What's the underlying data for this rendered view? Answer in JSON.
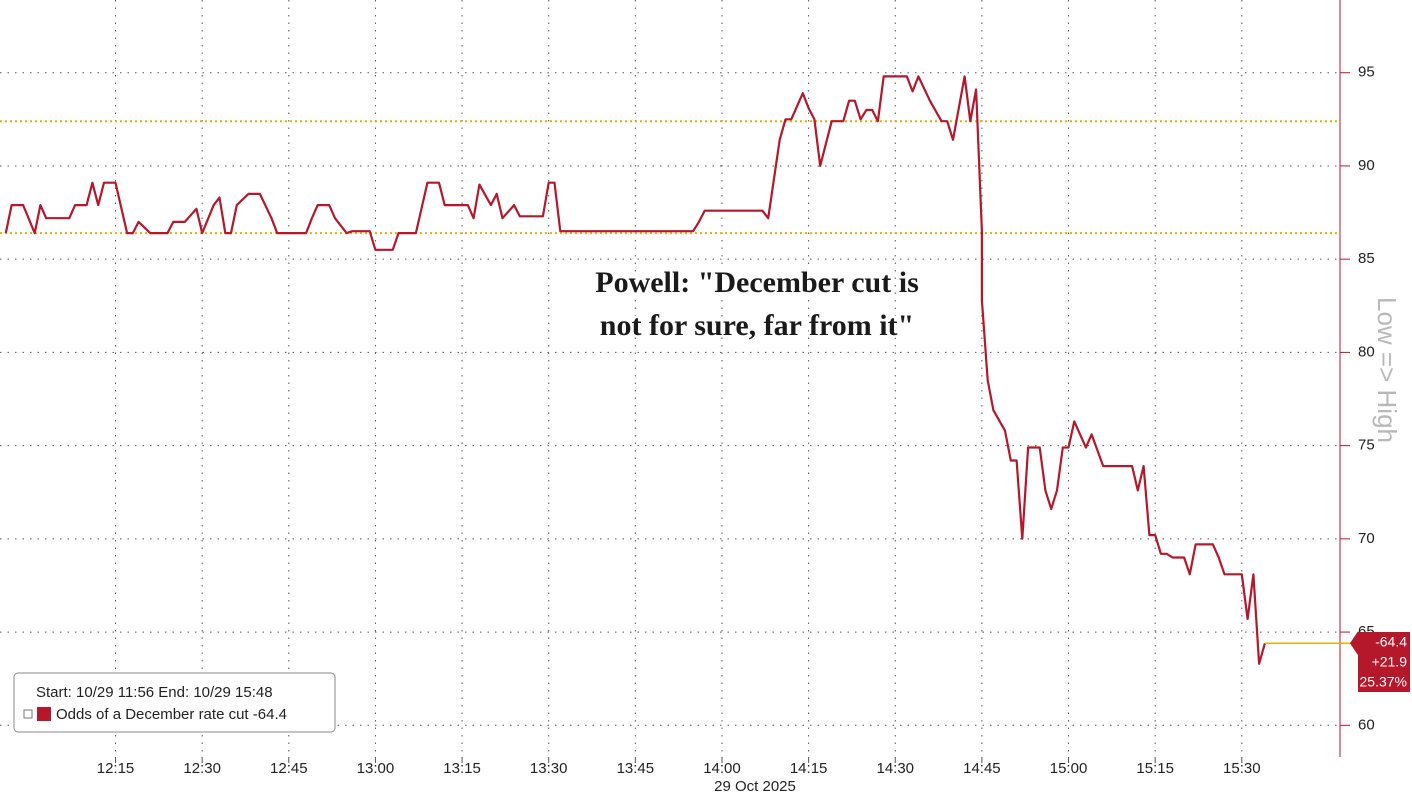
{
  "chart_data": {
    "type": "line",
    "annotation": [
      "Powell: \"December cut is",
      "not for sure, far from it\""
    ],
    "axis_label": "Low => High",
    "date_label": "29 Oct 2025",
    "legend": {
      "header": "Start: 10/29 11:56 End: 10/29 15:48"
    },
    "last_value_box": [
      "-64.4",
      "+21.9",
      "25.37%"
    ],
    "x": [
      "11:56",
      "11:57",
      "11:59",
      "12:01",
      "12:02",
      "12:03",
      "12:07",
      "12:08",
      "12:10",
      "12:11",
      "12:12",
      "12:13",
      "12:15",
      "12:17",
      "12:18",
      "12:19",
      "12:21",
      "12:24",
      "12:25",
      "12:27",
      "12:29",
      "12:30",
      "12:32",
      "12:33",
      "12:34",
      "12:35",
      "12:36",
      "12:38",
      "12:40",
      "12:42",
      "12:43",
      "12:48",
      "12:49",
      "12:50",
      "12:52",
      "12:53",
      "12:55",
      "12:56",
      "12:59",
      "13:00",
      "13:03",
      "13:04",
      "13:07",
      "13:09",
      "13:11",
      "13:12",
      "13:16",
      "13:17",
      "13:18",
      "13:20",
      "13:21",
      "13:22",
      "13:24",
      "13:25",
      "13:29",
      "13:30",
      "13:31",
      "13:32",
      "13:55",
      "13:56",
      "13:57",
      "14:07",
      "14:08",
      "14:10",
      "14:11",
      "14:12",
      "14:14",
      "14:15",
      "14:16",
      "14:17",
      "14:19",
      "14:21",
      "14:22",
      "14:23",
      "14:24",
      "14:25",
      "14:26",
      "14:27",
      "14:28",
      "14:32",
      "14:33",
      "14:34",
      "14:36",
      "14:38",
      "14:39",
      "14:40",
      "14:42",
      "14:43",
      "14:44",
      "14:45",
      "14:45",
      "14:46",
      "14:47",
      "14:49",
      "14:50",
      "14:51",
      "14:52",
      "14:53",
      "14:55",
      "14:56",
      "14:57",
      "14:58",
      "14:59",
      "15:00",
      "15:01",
      "15:02",
      "15:03",
      "15:04",
      "15:06",
      "15:11",
      "15:12",
      "15:13",
      "15:14",
      "15:15",
      "15:16",
      "15:17",
      "15:18",
      "15:20",
      "15:21",
      "15:22",
      "15:25",
      "15:26",
      "15:27",
      "15:30",
      "15:31",
      "15:32",
      "15:33",
      "15:34"
    ],
    "series": [
      {
        "name": "Odds of a December rate cut -64.4",
        "color": "#b5172b",
        "values": [
          86.4,
          87.9,
          87.9,
          86.4,
          87.9,
          87.2,
          87.2,
          87.9,
          87.9,
          89.1,
          87.9,
          89.1,
          89.1,
          86.4,
          86.4,
          87.0,
          86.4,
          86.4,
          87.0,
          87.0,
          87.7,
          86.4,
          87.9,
          88.3,
          86.4,
          86.4,
          87.9,
          88.5,
          88.5,
          87.2,
          86.4,
          86.4,
          87.2,
          87.9,
          87.9,
          87.2,
          86.4,
          86.5,
          86.5,
          85.5,
          85.5,
          86.4,
          86.4,
          89.1,
          89.1,
          87.9,
          87.9,
          87.2,
          89.0,
          87.9,
          88.5,
          87.2,
          87.9,
          87.3,
          87.3,
          89.1,
          89.1,
          86.5,
          86.5,
          87.0,
          87.6,
          87.6,
          87.2,
          91.4,
          92.5,
          92.5,
          93.9,
          93.1,
          92.5,
          90.0,
          92.4,
          92.4,
          93.5,
          93.5,
          92.5,
          93.0,
          93.0,
          92.4,
          94.8,
          94.8,
          94.0,
          94.8,
          93.5,
          92.4,
          92.4,
          91.4,
          94.8,
          92.4,
          94.1,
          86.5,
          82.8,
          78.5,
          76.9,
          75.8,
          74.2,
          74.2,
          70.0,
          74.9,
          74.9,
          72.6,
          71.6,
          72.6,
          74.9,
          74.9,
          76.3,
          75.6,
          74.9,
          75.6,
          73.9,
          73.9,
          72.6,
          73.9,
          70.2,
          70.2,
          69.2,
          69.2,
          69.0,
          69.0,
          68.1,
          69.7,
          69.7,
          69.0,
          68.1,
          68.1,
          65.7,
          68.1,
          63.3,
          64.4
        ]
      }
    ],
    "ref_lines": [
      {
        "value": 92.4,
        "color": "#e8b000"
      },
      {
        "value": 86.4,
        "color": "#e8b000"
      }
    ],
    "xlim": [
      "11:55",
      "15:47"
    ],
    "xticks": [
      "12:15",
      "12:30",
      "12:45",
      "13:00",
      "13:15",
      "13:30",
      "13:45",
      "14:00",
      "14:15",
      "14:30",
      "14:45",
      "15:00",
      "15:15",
      "15:30"
    ],
    "ylim": [
      58.3,
      98.9
    ],
    "yticks": [
      60,
      65,
      70,
      75,
      80,
      85,
      90,
      95
    ],
    "grid": true
  }
}
